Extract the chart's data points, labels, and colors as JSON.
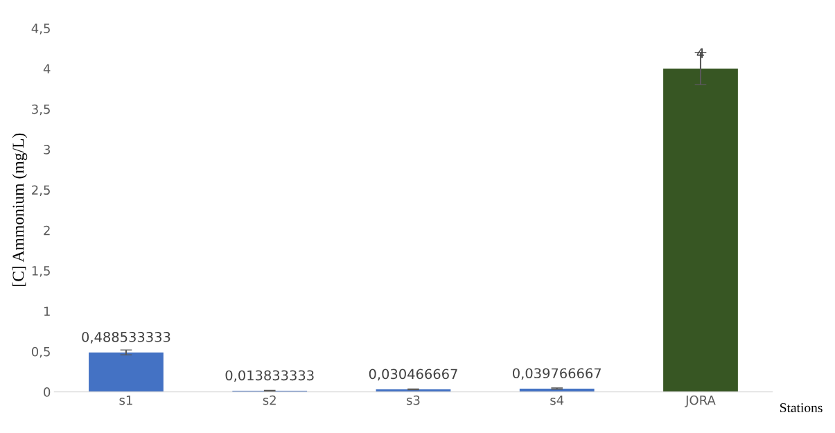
{
  "chart_data": {
    "type": "bar",
    "categories": [
      "s1",
      "s2",
      "s3",
      "s4",
      "JORA"
    ],
    "values": [
      0.488533333,
      0.013833333,
      0.030466667,
      0.039766667,
      4
    ],
    "colors": [
      "#4472c4",
      "#4472c4",
      "#4472c4",
      "#4472c4",
      "#375623"
    ],
    "errors": [
      0.03,
      0.005,
      0.005,
      0.008,
      0.2
    ],
    "value_labels": [
      "0,488533333",
      "0,013833333",
      "0,030466667",
      "0,039766667",
      "4"
    ],
    "xlabel": "Stations",
    "ylabel": "[C] Ammonium (mg/L)",
    "ylim": [
      0,
      4.5
    ],
    "yticks": [
      0,
      {
        "value": 0.5,
        "label": "0,5"
      },
      1,
      {
        "value": 1.5,
        "label": "1,5"
      },
      2,
      {
        "value": 2.5,
        "label": "2,5"
      },
      3,
      {
        "value": 3.5,
        "label": "3,5"
      },
      4,
      {
        "value": 4.5,
        "label": "4,5"
      }
    ],
    "grid": false,
    "legend": false
  }
}
